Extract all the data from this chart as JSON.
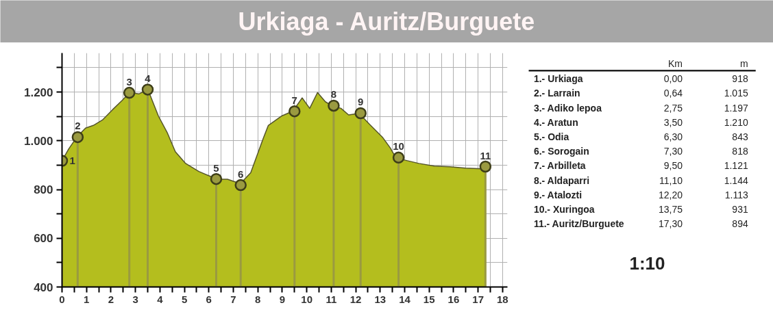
{
  "chart_data": [
    {
      "type": "area",
      "title": "Urkiaga - Auritz/Burguete",
      "xlim": [
        0,
        18.2
      ],
      "ylim": [
        400,
        1360
      ],
      "xticks": [
        0,
        {
          "value": 0.5,
          "label": null
        },
        1,
        {
          "value": 1.5,
          "label": null
        },
        2,
        {
          "value": 2.5,
          "label": null
        },
        3,
        {
          "value": 3.5,
          "label": null
        },
        4,
        {
          "value": 4.5,
          "label": null
        },
        5,
        {
          "value": 5.5,
          "label": null
        },
        6,
        {
          "value": 6.5,
          "label": null
        },
        7,
        {
          "value": 7.5,
          "label": null
        },
        8,
        {
          "value": 8.5,
          "label": null
        },
        9,
        {
          "value": 9.5,
          "label": null
        },
        10,
        {
          "value": 10.5,
          "label": null
        },
        11,
        {
          "value": 11.5,
          "label": null
        },
        12,
        {
          "value": 12.5,
          "label": null
        },
        13,
        {
          "value": 13.5,
          "label": null
        },
        14,
        {
          "value": 14.5,
          "label": null
        },
        15,
        {
          "value": 15.5,
          "label": null
        },
        16,
        {
          "value": 16.5,
          "label": null
        },
        17,
        {
          "value": 17.5,
          "label": null
        },
        18
      ],
      "yticks": [
        400,
        {
          "value": 500,
          "label": null
        },
        600,
        {
          "value": 700,
          "label": null
        },
        800,
        {
          "value": 900,
          "label": null
        },
        {
          "value": 1000,
          "label": "1.000"
        },
        {
          "value": 1100,
          "label": null
        },
        {
          "value": 1200,
          "label": "1.200"
        },
        {
          "value": 1300,
          "label": null
        }
      ],
      "grid": true,
      "series": [
        {
          "type": "area",
          "color": "#b4be1e",
          "x": [
            0,
            0.27,
            0.62,
            0.96,
            1.28,
            1.65,
            2.07,
            2.45,
            2.77,
            3.14,
            3.51,
            3.94,
            4.31,
            4.63,
            5.05,
            5.59,
            6.01,
            6.33,
            6.76,
            7.29,
            7.71,
            8.22,
            8.43,
            8.96,
            9.44,
            9.81,
            10.12,
            10.44,
            10.76,
            11.02,
            11.4,
            11.71,
            12.14,
            12.56,
            13.09,
            13.41,
            13.62,
            13.99,
            14.58,
            15.21,
            15.85,
            16.49,
            17.18,
            17.3
          ],
          "values": [
            918,
            966,
            1017,
            1052,
            1063,
            1085,
            1128,
            1165,
            1198,
            1192,
            1210,
            1101,
            1031,
            955,
            907,
            874,
            856,
            842,
            842,
            824,
            869,
            1009,
            1063,
            1101,
            1122,
            1176,
            1133,
            1198,
            1160,
            1144,
            1133,
            1106,
            1112,
            1068,
            1015,
            971,
            934,
            921,
            907,
            896,
            893,
            888,
            885,
            894
          ]
        },
        {
          "type": "lollipop",
          "color": "#9a9a40",
          "x": [
            0,
            0.64,
            2.75,
            3.5,
            6.3,
            7.3,
            9.5,
            11.1,
            12.2,
            13.75,
            17.3
          ],
          "values": [
            918,
            1015,
            1197,
            1210,
            843,
            818,
            1121,
            1144,
            1113,
            931,
            894
          ]
        }
      ],
      "annotations": [
        {
          "text": "1",
          "x": 0,
          "y": 918
        },
        {
          "text": "2",
          "x": 0.64,
          "y": 1015
        },
        {
          "text": "3",
          "x": 2.75,
          "y": 1197
        },
        {
          "text": "4",
          "x": 3.5,
          "y": 1210
        },
        {
          "text": "5",
          "x": 6.3,
          "y": 843
        },
        {
          "text": "6",
          "x": 7.3,
          "y": 818
        },
        {
          "text": "7",
          "x": 9.5,
          "y": 1121
        },
        {
          "text": "8",
          "x": 11.1,
          "y": 1144
        },
        {
          "text": "9",
          "x": 12.2,
          "y": 1113
        },
        {
          "text": "10",
          "x": 13.75,
          "y": 931
        },
        {
          "text": "11",
          "x": 17.3,
          "y": 894
        }
      ]
    },
    {
      "type": "other",
      "annotations": [
        "Km",
        "m",
        "1.- Urkiaga",
        "0,00",
        "918",
        "2.- Larrain",
        "0,64",
        "1.015",
        "3.- Adiko lepoa",
        "2,75",
        "1.197",
        "4.- Aratun",
        "3,50",
        "1.210",
        "5.- Odia",
        "6,30",
        "843",
        "6.- Sorogain",
        "7,30",
        "818",
        "7.- Arbilleta",
        "9,50",
        "1.121",
        "8.- Aldaparri",
        "11,10",
        "1.144",
        "9.- Atalozti",
        "12,20",
        "1.113",
        "10.- Xuringoa",
        "13,75",
        "931",
        "11.- Auritz/Burguete",
        "17,30",
        "894",
        "1:10"
      ]
    }
  ]
}
